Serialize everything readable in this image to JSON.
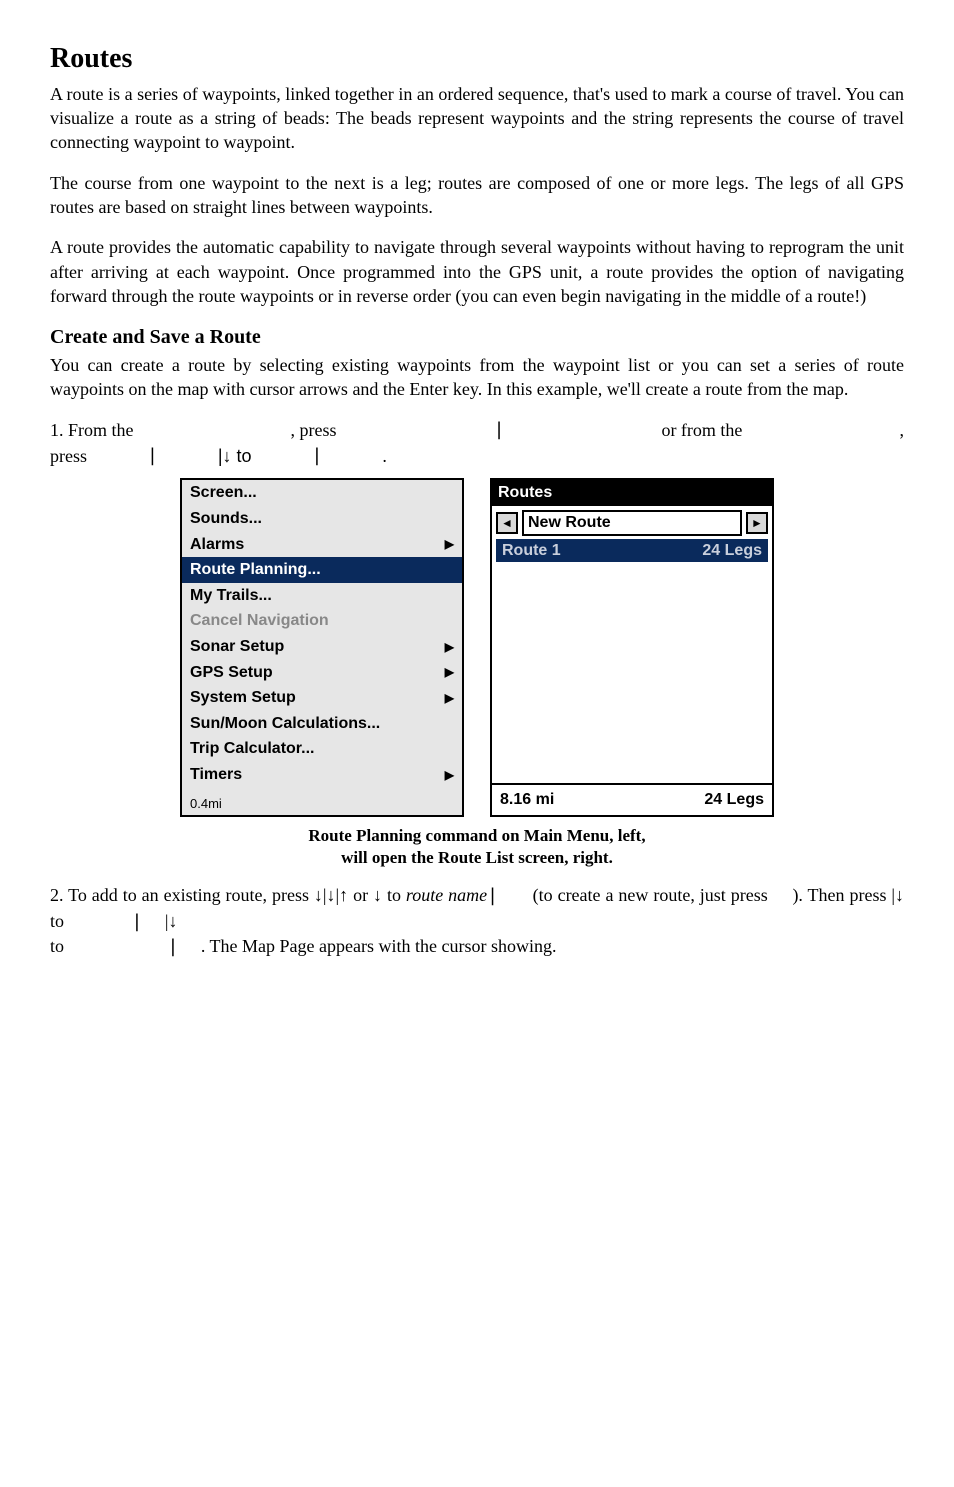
{
  "heading": "Routes",
  "para1": "A route is a series of waypoints, linked together in an ordered sequence, that's used to mark a course of travel. You can visualize a route as a string of beads: The beads represent waypoints and the string represents the course of travel connecting waypoint to waypoint.",
  "para2": "The course from one waypoint to the next is a leg; routes are composed of one or more legs. The legs of all GPS routes are based on straight lines between waypoints.",
  "para3": "A route provides the automatic capability to navigate through several waypoints without having to reprogram the unit after arriving at each waypoint. Once programmed into the GPS unit, a route provides the option of navigating forward through the route waypoints or in reverse order (you can even begin navigating in the middle of a route!)",
  "subheading": "Create and Save a Route",
  "para4": "You can create a route by selecting existing waypoints from the waypoint list or you can set a series of route waypoints on the map with cursor arrows and the Enter key. In this example, we'll create a route from the map.",
  "step1": {
    "a": "1.  From  the",
    "b": ",  press",
    "c": "|",
    "d": "or  from  the",
    "e": ",",
    "f": "press",
    "g": "|",
    "h": "|↓ to",
    "i": "|",
    "j": "."
  },
  "menu": {
    "items": [
      {
        "label": "Screen...",
        "arrow": false,
        "state": ""
      },
      {
        "label": "Sounds...",
        "arrow": false,
        "state": ""
      },
      {
        "label": "Alarms",
        "arrow": true,
        "state": ""
      },
      {
        "label": "Route Planning...",
        "arrow": false,
        "state": "selected"
      },
      {
        "label": "My Trails...",
        "arrow": false,
        "state": ""
      },
      {
        "label": "Cancel Navigation",
        "arrow": false,
        "state": "disabled"
      },
      {
        "label": "Sonar Setup",
        "arrow": true,
        "state": ""
      },
      {
        "label": "GPS Setup",
        "arrow": true,
        "state": ""
      },
      {
        "label": "System Setup",
        "arrow": true,
        "state": ""
      },
      {
        "label": "Sun/Moon Calculations...",
        "arrow": false,
        "state": ""
      },
      {
        "label": "Trip Calculator...",
        "arrow": false,
        "state": ""
      },
      {
        "label": "Timers",
        "arrow": true,
        "state": ""
      }
    ],
    "footer": "0.4mi"
  },
  "routes": {
    "title": "Routes",
    "newRoute": "New Route",
    "leftArrow": "◄",
    "rightArrow": "►",
    "route1": "Route 1",
    "route1legs": "24 Legs",
    "footerLeft": "8.16 mi",
    "footerRight": "24 Legs"
  },
  "caption1": "Route Planning command on Main Menu, left,",
  "caption2": "will open the Route List screen, right.",
  "step2": {
    "a": "2. To add to an existing route, press ↓|↓|↑ or ↓ to ",
    "b": "route name",
    "c": "|",
    "d": "(to",
    "e": "create a new route, just press ",
    "f": "). Then press  |↓ to",
    "g": "|",
    "h": "|↓",
    "i": "to",
    "j": "|",
    "k": ". The Map Page appears with the cursor showing."
  }
}
